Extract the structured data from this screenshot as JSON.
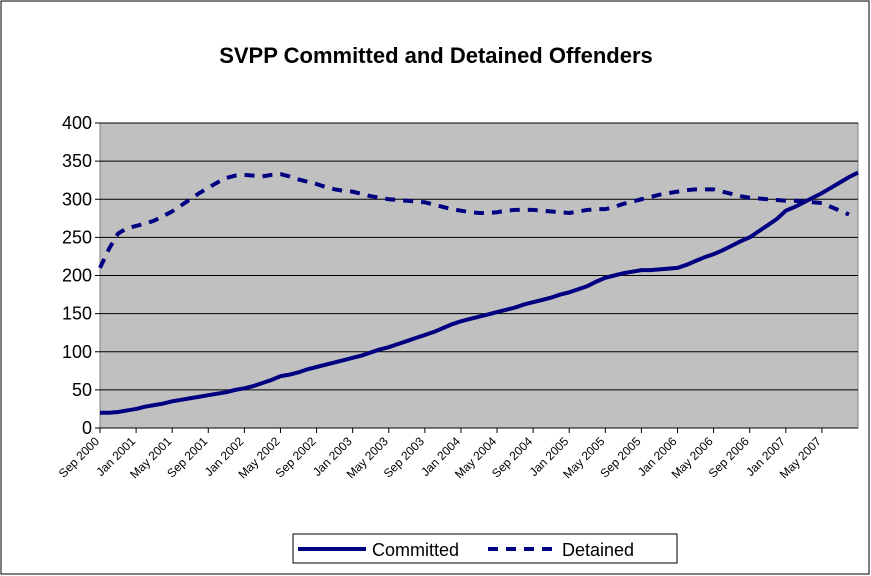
{
  "chart_data": {
    "type": "line",
    "title": "SVPP Committed and Detained Offenders",
    "categories": [
      "Sep 2000",
      null,
      null,
      null,
      "Jan 2001",
      null,
      null,
      null,
      "May 2001",
      null,
      null,
      null,
      "Sep 2001",
      null,
      null,
      null,
      "Jan 2002",
      null,
      null,
      null,
      "May 2002",
      null,
      null,
      null,
      "Sep 2002",
      null,
      null,
      null,
      "Jan 2003",
      null,
      null,
      null,
      "May 2003",
      null,
      null,
      null,
      "Sep 2003",
      null,
      null,
      null,
      "Jan 2004",
      null,
      null,
      null,
      "May 2004",
      null,
      null,
      null,
      "Sep 2004",
      null,
      null,
      null,
      "Jan 2005",
      null,
      null,
      null,
      "May 2005",
      null,
      null,
      null,
      "Sep 2005",
      null,
      null,
      null,
      "Jan 2006",
      null,
      null,
      null,
      "May 2006",
      null,
      null,
      null,
      "Sep 2006",
      null,
      null,
      null,
      "Jan 2007",
      null,
      null,
      null,
      "May 2007",
      null,
      null,
      null,
      null
    ],
    "series": [
      {
        "name": "Committed",
        "color": "#000080",
        "line_style": "solid",
        "values": [
          20,
          20,
          21,
          23,
          25,
          28,
          30,
          32,
          35,
          37,
          39,
          41,
          43,
          45,
          47,
          50,
          52,
          55,
          59,
          63,
          68,
          70,
          73,
          77,
          80,
          83,
          86,
          89,
          92,
          95,
          99,
          103,
          106,
          110,
          114,
          118,
          122,
          126,
          131,
          136,
          140,
          143,
          146,
          149,
          152,
          155,
          158,
          162,
          165,
          168,
          171,
          175,
          178,
          182,
          186,
          192,
          197,
          200,
          203,
          205,
          207,
          207,
          208,
          209,
          210,
          214,
          219,
          224,
          228,
          233,
          239,
          245,
          250,
          258,
          266,
          274,
          285,
          290,
          296,
          302,
          308,
          315,
          322,
          329,
          335
        ]
      },
      {
        "name": "Detained",
        "color": "#000080",
        "line_style": "dashed",
        "values": [
          210,
          235,
          255,
          262,
          265,
          268,
          272,
          278,
          284,
          292,
          300,
          308,
          315,
          322,
          328,
          331,
          332,
          331,
          330,
          332,
          333,
          330,
          326,
          323,
          320,
          316,
          313,
          311,
          310,
          307,
          304,
          302,
          300,
          299,
          298,
          297,
          296,
          293,
          290,
          287,
          285,
          283,
          282,
          282,
          283,
          285,
          286,
          286,
          286,
          285,
          284,
          283,
          282,
          284,
          286,
          287,
          287,
          290,
          294,
          297,
          300,
          303,
          306,
          308,
          310,
          312,
          313,
          313,
          313,
          310,
          307,
          304,
          302,
          301,
          300,
          299,
          298,
          298,
          297,
          296,
          295,
          290,
          285,
          280,
          null
        ]
      }
    ],
    "ylim": [
      0,
      400
    ],
    "yticks": [
      0,
      50,
      100,
      150,
      200,
      250,
      300,
      350,
      400
    ],
    "grid": true,
    "plot_background": "#c0c0c0",
    "legend": "bottom"
  }
}
